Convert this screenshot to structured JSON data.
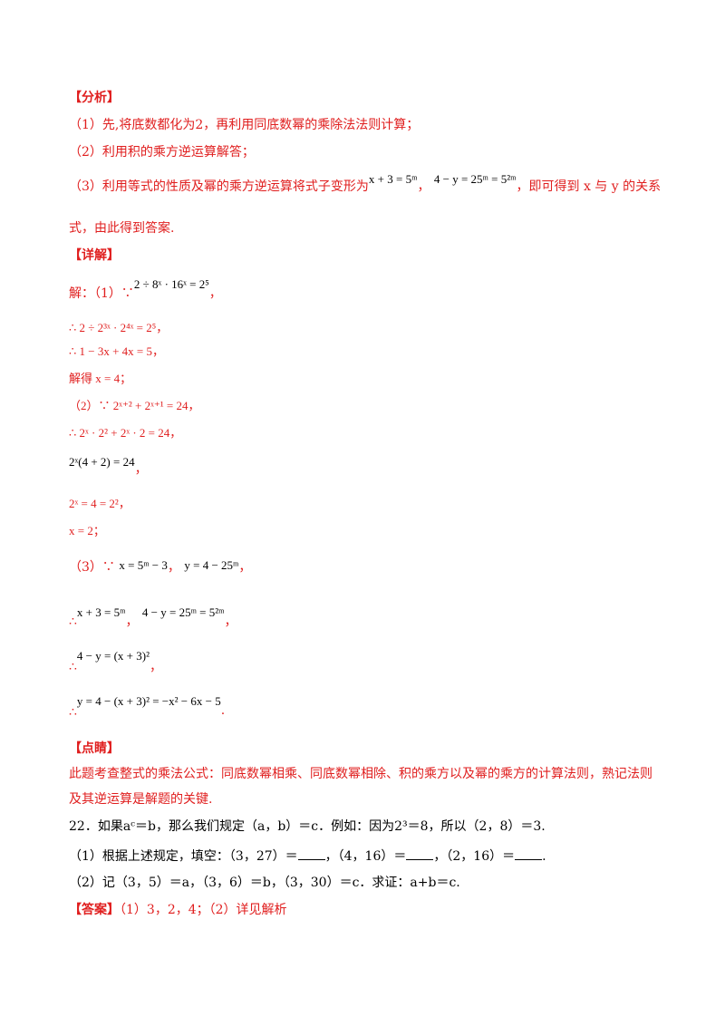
{
  "analysis": {
    "heading": "【分析】",
    "step1": "（1）先,将底数都化为2，再利用同底数幂的乘除法法则计算；",
    "step2": "（2）利用积的乘方逆运算解答；",
    "step3_prefix": "（3）利用等式的性质及幂的乘方逆运算将式子变形为",
    "step3_eq1": "x + 3 = 5ᵐ",
    "step3_sep": "，",
    "step3_eq2": "4 − y = 25ᵐ = 5²ᵐ",
    "step3_suffix": "，即可得到 x 与 y 的关系",
    "step3_cont": "式，由此得到答案."
  },
  "solution": {
    "heading": "【详解】",
    "p1_prefix": "解：（1）∵",
    "p1_eq": "2 ÷ 8ˣ · 16ˣ = 2⁵",
    "p1_end": "，",
    "l2": "∴ 2 ÷ 2³ˣ · 2⁴ˣ = 2⁵，",
    "l3": "∴ 1 − 3x + 4x = 5，",
    "l4": "解得 x = 4；",
    "l5": "（2）∵ 2ˣ⁺² + 2ˣ⁺¹ = 24，",
    "l6": "∴ 2ˣ · 2² + 2ˣ · 2 = 24，",
    "l7": "2ˣ(4 + 2) = 24",
    "l7_end": "，",
    "l8": "2ˣ = 4 = 2²，",
    "l9": "x = 2；",
    "l10_prefix": "（3）∵",
    "l10_eq1": "x = 5ᵐ − 3",
    "l10_sep": "，",
    "l10_eq2": "y = 4 − 25ᵐ",
    "l10_end": "，",
    "l11_prefix": "∴",
    "l11_eq1": "x + 3 = 5ᵐ",
    "l11_sep": "，",
    "l11_eq2": "4 − y = 25ᵐ = 5²ᵐ",
    "l11_end": "，",
    "l12_prefix": "∴",
    "l12_eq": "4 − y = (x + 3)²",
    "l12_end": "，",
    "l13_prefix": "∴",
    "l13_eq": "y = 4 − (x + 3)² = −x² − 6x − 5",
    "l13_end": "."
  },
  "comment": {
    "heading": "【点睛】",
    "body": "此题考查整式的乘法公式：同底数幂相乘、同底数幂相除、积的乘方以及幂的乘方的计算法则，熟记法则及其逆运算是解题的关键."
  },
  "question": {
    "stem": "22．如果aᶜ＝b，那么我们规定（a，b）＝c．例如：因为2³＝8，所以（2，8）＝3.",
    "part1_a": "（1）根据上述规定，填空：（3，27）＝",
    "part1_b": "，（4，16）＝",
    "part1_c": "，（2，16）＝",
    "part1_d": ".",
    "part2": "（2）记（3，5）＝a，（3，6）＝b，（3，30）＝c．求证：a+b＝c."
  },
  "answer": {
    "label": "【答案】",
    "text": "（1）3，2，4；（2）详见解析"
  }
}
